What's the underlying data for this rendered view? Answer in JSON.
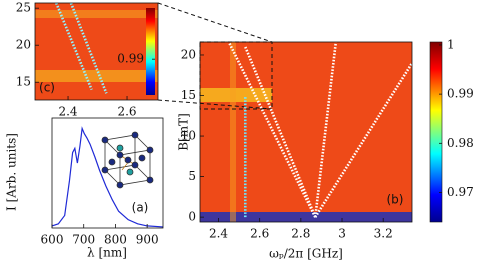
{
  "chart_data": [
    {
      "type": "heatmap-lines",
      "label": "(b)",
      "xlabel": "ωₚ/2π [GHz]",
      "ylabel": "B[mT]",
      "xlim": [
        2.31,
        3.34
      ],
      "ylim": [
        -0.6,
        21.6
      ],
      "xticks": [
        2.4,
        2.6,
        2.8,
        3,
        3.2
      ],
      "yticks": [
        0,
        5,
        10,
        15,
        20
      ],
      "series": [
        {
          "color": "#ffffff",
          "x": [
            2.87,
            2.45
          ],
          "values": [
            0,
            21.6
          ]
        },
        {
          "color": "#ffffff",
          "x": [
            2.87,
            2.53
          ],
          "values": [
            0,
            21
          ]
        },
        {
          "color": "#ffffff",
          "x": [
            2.87,
            2.97
          ],
          "values": [
            0,
            21.6
          ]
        },
        {
          "color": "#ffffff",
          "x": [
            2.87,
            3.34
          ],
          "values": [
            0,
            19
          ]
        },
        {
          "color": "#6fe8ff",
          "x": [
            2.53,
            2.53
          ],
          "values": [
            0,
            15
          ]
        }
      ],
      "colorbar": {
        "lim": [
          0.964,
          1.0006
        ],
        "ticks": [
          0.97,
          0.98,
          0.99,
          1
        ]
      }
    },
    {
      "type": "heatmap-lines",
      "label": "(c)",
      "xlim": [
        2.288,
        2.705
      ],
      "ylim": [
        12.6,
        25.7
      ],
      "xticks": [
        2.4,
        2.6
      ],
      "yticks": [
        15,
        20,
        25
      ],
      "series": [
        {
          "color": "#8ff4ff",
          "x": [
            2.36,
            2.48
          ],
          "values": [
            25.7,
            14
          ]
        },
        {
          "color": "#8ff4ff",
          "x": [
            2.41,
            2.53
          ],
          "values": [
            25.7,
            13.5
          ]
        }
      ],
      "colorbar": {
        "lim": [
          0.983,
          1.0
        ],
        "ticks": [
          0.99
        ]
      }
    },
    {
      "type": "line",
      "label": "(a)",
      "xlabel": "λ [nm]",
      "ylabel": "I [Arb. units]",
      "xlim": [
        600,
        950
      ],
      "ylim": [
        0,
        1.05
      ],
      "xticks": [
        600,
        700,
        800,
        900
      ],
      "series": [
        {
          "color": "#1f2ad6",
          "x": [
            600,
            620,
            640,
            655,
            665,
            672,
            680,
            688,
            695,
            702,
            710,
            720,
            735,
            750,
            770,
            790,
            810,
            840,
            870,
            900,
            950
          ],
          "values": [
            0.02,
            0.04,
            0.12,
            0.45,
            0.72,
            0.76,
            0.62,
            0.78,
            0.95,
            0.9,
            0.86,
            0.8,
            0.68,
            0.55,
            0.4,
            0.27,
            0.16,
            0.08,
            0.04,
            0.02,
            0.01
          ]
        }
      ]
    }
  ]
}
